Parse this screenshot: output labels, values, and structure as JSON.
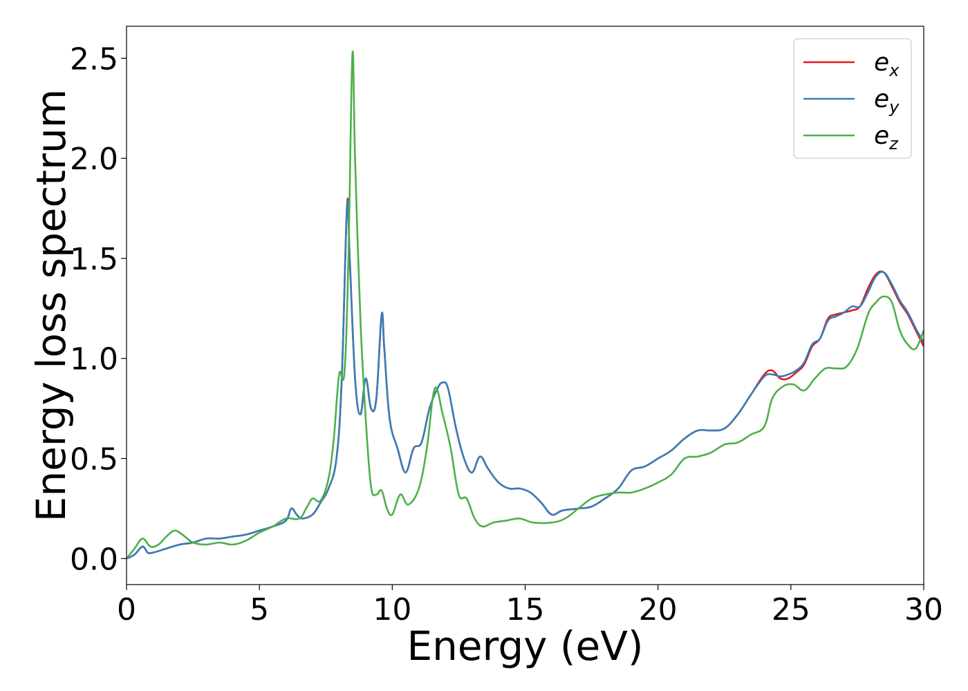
{
  "chart_data": {
    "type": "line",
    "title": "",
    "xlabel": "Energy (eV)",
    "ylabel": "Energy loss spectrum",
    "xlim": [
      0,
      30
    ],
    "ylim": [
      -0.13,
      2.66
    ],
    "xticks": [
      0,
      5,
      10,
      15,
      20,
      25,
      30
    ],
    "yticks": [
      0.0,
      0.5,
      1.0,
      1.5,
      2.0,
      2.5
    ],
    "xtick_labels": [
      "0",
      "5",
      "10",
      "15",
      "20",
      "25",
      "30"
    ],
    "ytick_labels": [
      "0.0",
      "0.5",
      "1.0",
      "1.5",
      "2.0",
      "2.5"
    ],
    "grid": false,
    "legend": {
      "position": "top-right"
    },
    "series": [
      {
        "name": "e",
        "subscript": "x",
        "color": "#e41a1c",
        "x": [
          0,
          0.3,
          0.6,
          0.8,
          1.0,
          1.5,
          2.0,
          2.5,
          3.0,
          3.5,
          4.0,
          4.5,
          5.0,
          5.5,
          6.0,
          6.2,
          6.4,
          6.6,
          7.0,
          7.3,
          7.6,
          7.9,
          8.1,
          8.3,
          8.4,
          8.6,
          8.8,
          9.0,
          9.2,
          9.4,
          9.6,
          9.7,
          9.9,
          10.2,
          10.5,
          10.8,
          11.1,
          11.4,
          11.7,
          11.9,
          12.1,
          12.4,
          12.7,
          13.0,
          13.3,
          13.6,
          14.0,
          14.4,
          14.8,
          15.2,
          15.6,
          16.0,
          16.4,
          17.0,
          17.5,
          18.0,
          18.5,
          19.0,
          19.5,
          20.0,
          20.5,
          21.0,
          21.5,
          22.0,
          22.5,
          23.0,
          23.5,
          24.0,
          24.3,
          24.6,
          24.9,
          25.2,
          25.5,
          25.8,
          26.1,
          26.4,
          26.7,
          27.0,
          27.3,
          27.6,
          27.9,
          28.2,
          28.5,
          28.8,
          29.1,
          29.4,
          29.7,
          30.0
        ],
        "y": [
          0.0,
          0.02,
          0.06,
          0.03,
          0.03,
          0.05,
          0.07,
          0.08,
          0.1,
          0.1,
          0.11,
          0.12,
          0.14,
          0.16,
          0.19,
          0.25,
          0.22,
          0.2,
          0.22,
          0.28,
          0.35,
          0.5,
          0.9,
          1.77,
          1.5,
          0.9,
          0.72,
          0.9,
          0.75,
          0.8,
          1.22,
          1.05,
          0.7,
          0.55,
          0.43,
          0.55,
          0.58,
          0.75,
          0.85,
          0.88,
          0.85,
          0.65,
          0.5,
          0.43,
          0.51,
          0.45,
          0.38,
          0.35,
          0.35,
          0.33,
          0.28,
          0.22,
          0.24,
          0.25,
          0.26,
          0.3,
          0.35,
          0.44,
          0.46,
          0.5,
          0.54,
          0.6,
          0.64,
          0.64,
          0.65,
          0.72,
          0.82,
          0.92,
          0.94,
          0.9,
          0.9,
          0.93,
          0.97,
          1.06,
          1.1,
          1.2,
          1.22,
          1.23,
          1.24,
          1.26,
          1.35,
          1.42,
          1.43,
          1.36,
          1.28,
          1.22,
          1.14,
          1.06
        ]
      },
      {
        "name": "e",
        "subscript": "y",
        "color": "#377eb8",
        "x": [
          0,
          0.3,
          0.6,
          0.8,
          1.0,
          1.5,
          2.0,
          2.5,
          3.0,
          3.5,
          4.0,
          4.5,
          5.0,
          5.5,
          6.0,
          6.2,
          6.4,
          6.6,
          7.0,
          7.3,
          7.6,
          7.9,
          8.1,
          8.3,
          8.4,
          8.6,
          8.8,
          9.0,
          9.2,
          9.4,
          9.6,
          9.7,
          9.9,
          10.2,
          10.5,
          10.8,
          11.1,
          11.4,
          11.7,
          11.9,
          12.1,
          12.4,
          12.7,
          13.0,
          13.3,
          13.6,
          14.0,
          14.4,
          14.8,
          15.2,
          15.6,
          16.0,
          16.4,
          17.0,
          17.5,
          18.0,
          18.5,
          19.0,
          19.5,
          20.0,
          20.5,
          21.0,
          21.5,
          22.0,
          22.5,
          23.0,
          23.5,
          24.0,
          24.3,
          24.6,
          24.9,
          25.2,
          25.5,
          25.8,
          26.1,
          26.4,
          26.7,
          27.0,
          27.3,
          27.6,
          27.9,
          28.2,
          28.5,
          28.8,
          29.1,
          29.4,
          29.7,
          30.0
        ],
        "y": [
          0.0,
          0.02,
          0.06,
          0.03,
          0.03,
          0.05,
          0.07,
          0.08,
          0.1,
          0.1,
          0.11,
          0.12,
          0.14,
          0.16,
          0.19,
          0.25,
          0.22,
          0.2,
          0.22,
          0.28,
          0.35,
          0.5,
          0.9,
          1.76,
          1.5,
          0.9,
          0.72,
          0.9,
          0.75,
          0.8,
          1.22,
          1.05,
          0.7,
          0.55,
          0.43,
          0.55,
          0.58,
          0.75,
          0.85,
          0.88,
          0.85,
          0.65,
          0.5,
          0.43,
          0.51,
          0.45,
          0.38,
          0.35,
          0.35,
          0.33,
          0.28,
          0.22,
          0.24,
          0.25,
          0.26,
          0.3,
          0.35,
          0.44,
          0.46,
          0.5,
          0.54,
          0.6,
          0.64,
          0.64,
          0.65,
          0.72,
          0.82,
          0.91,
          0.92,
          0.91,
          0.92,
          0.94,
          0.98,
          1.07,
          1.1,
          1.19,
          1.21,
          1.23,
          1.26,
          1.26,
          1.33,
          1.41,
          1.43,
          1.37,
          1.29,
          1.23,
          1.15,
          1.08
        ]
      },
      {
        "name": "e",
        "subscript": "z",
        "color": "#4daf4a",
        "x": [
          0,
          0.3,
          0.6,
          0.9,
          1.2,
          1.5,
          1.8,
          2.1,
          2.5,
          3.0,
          3.5,
          4.0,
          4.5,
          5.0,
          5.5,
          6.0,
          6.5,
          6.8,
          7.0,
          7.3,
          7.6,
          7.8,
          8.0,
          8.2,
          8.35,
          8.5,
          8.6,
          8.8,
          9.0,
          9.2,
          9.4,
          9.6,
          9.8,
          10.0,
          10.3,
          10.6,
          11.0,
          11.3,
          11.6,
          11.9,
          12.2,
          12.5,
          12.8,
          13.1,
          13.4,
          13.8,
          14.3,
          14.8,
          15.3,
          16.0,
          16.5,
          17.0,
          17.5,
          18.0,
          18.5,
          19.0,
          19.5,
          20.0,
          20.5,
          21.0,
          21.5,
          22.0,
          22.5,
          23.0,
          23.5,
          24.0,
          24.3,
          24.7,
          25.1,
          25.5,
          25.9,
          26.3,
          26.7,
          27.1,
          27.5,
          27.9,
          28.2,
          28.5,
          28.8,
          29.1,
          29.4,
          29.7,
          30.0
        ],
        "y": [
          0.0,
          0.05,
          0.1,
          0.06,
          0.07,
          0.11,
          0.14,
          0.12,
          0.08,
          0.07,
          0.08,
          0.07,
          0.09,
          0.13,
          0.16,
          0.2,
          0.2,
          0.26,
          0.3,
          0.29,
          0.4,
          0.6,
          0.92,
          0.93,
          1.5,
          2.52,
          2.0,
          1.2,
          0.7,
          0.36,
          0.32,
          0.34,
          0.25,
          0.22,
          0.32,
          0.27,
          0.35,
          0.55,
          0.85,
          0.72,
          0.55,
          0.32,
          0.3,
          0.2,
          0.16,
          0.18,
          0.19,
          0.2,
          0.18,
          0.18,
          0.2,
          0.25,
          0.3,
          0.32,
          0.33,
          0.33,
          0.35,
          0.38,
          0.42,
          0.5,
          0.51,
          0.53,
          0.57,
          0.58,
          0.62,
          0.66,
          0.8,
          0.86,
          0.87,
          0.84,
          0.9,
          0.95,
          0.95,
          0.96,
          1.05,
          1.22,
          1.28,
          1.31,
          1.28,
          1.14,
          1.07,
          1.05,
          1.14
        ]
      }
    ]
  }
}
